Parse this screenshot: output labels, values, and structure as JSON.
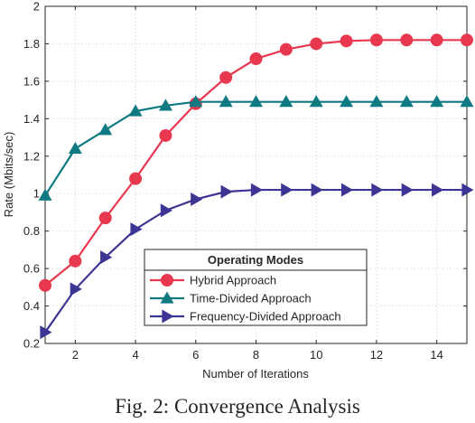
{
  "chart_data": {
    "type": "line",
    "caption": "Fig. 2: Convergence Analysis",
    "xlabel": "Number of Iterations",
    "ylabel": "Rate (Mbits/sec)",
    "xlim": [
      1,
      15
    ],
    "ylim": [
      0.2,
      2
    ],
    "xticks": [
      2,
      4,
      6,
      8,
      10,
      12,
      14
    ],
    "yticks": [
      0.2,
      0.4,
      0.6,
      0.8,
      1,
      1.2,
      1.4,
      1.6,
      1.8,
      2
    ],
    "ytick_labels": [
      "0.2",
      "0.4",
      "0.6",
      "0.8",
      "1",
      "1.2",
      "1.4",
      "1.6",
      "1.8",
      "2"
    ],
    "grid": true,
    "legend_title": "Operating Modes",
    "legend_position": "lower-middle",
    "x": [
      1,
      2,
      3,
      4,
      5,
      6,
      7,
      8,
      9,
      10,
      11,
      12,
      13,
      14,
      15
    ],
    "series": [
      {
        "name": "Hybrid Approach",
        "marker": "circle",
        "color": "#e8384f",
        "values": [
          0.51,
          0.64,
          0.87,
          1.08,
          1.31,
          1.48,
          1.62,
          1.72,
          1.77,
          1.8,
          1.815,
          1.82,
          1.82,
          1.82,
          1.82
        ]
      },
      {
        "name": "Time-Divided Approach",
        "marker": "triangle-up",
        "color": "#0f7a82",
        "values": [
          0.99,
          1.24,
          1.34,
          1.44,
          1.47,
          1.49,
          1.49,
          1.49,
          1.49,
          1.49,
          1.49,
          1.49,
          1.49,
          1.49,
          1.49
        ]
      },
      {
        "name": "Frequency-Divided Approach",
        "marker": "triangle-right",
        "color": "#3d3593",
        "values": [
          0.26,
          0.49,
          0.66,
          0.81,
          0.91,
          0.97,
          1.01,
          1.02,
          1.02,
          1.02,
          1.02,
          1.02,
          1.02,
          1.02,
          1.02
        ]
      }
    ]
  }
}
